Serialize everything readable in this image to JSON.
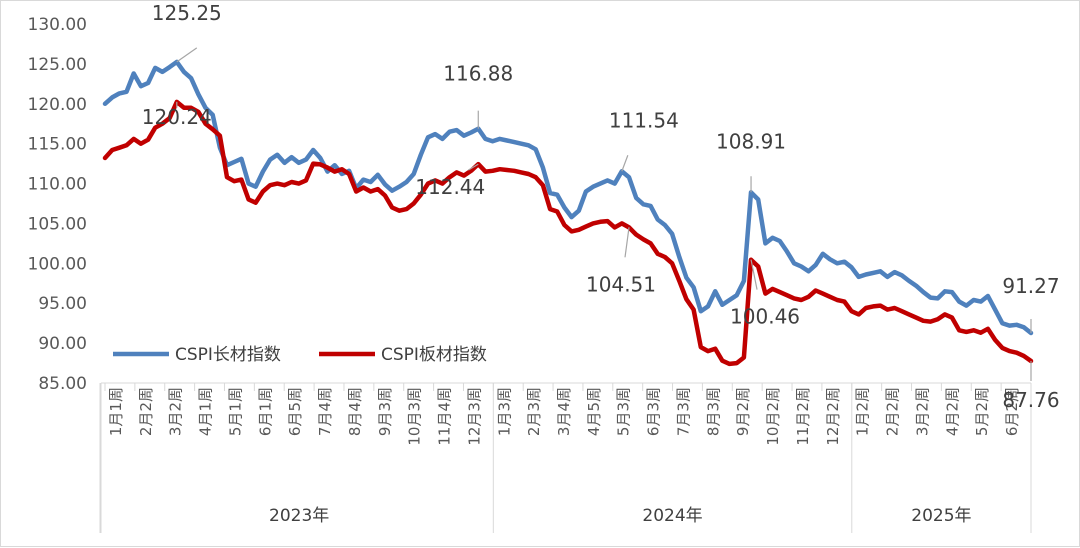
{
  "chart_data": {
    "type": "line",
    "title": "",
    "xlabel": "",
    "ylabel": "",
    "ylim": [
      85,
      130
    ],
    "yticks": [
      "85.00",
      "90.00",
      "95.00",
      "100.00",
      "105.00",
      "110.00",
      "115.00",
      "120.00",
      "125.00",
      "130.00"
    ],
    "grid": false,
    "legend_position": "bottom-left",
    "x_tick_labels": [
      "1月1周",
      "2月2周",
      "3月2周",
      "4月1周",
      "5月1周",
      "6月1周",
      "6月5周",
      "7月4周",
      "8月4周",
      "9月3周",
      "10月3周",
      "11月4周",
      "12月3周",
      "1月3周",
      "2月3周",
      "3月4周",
      "4月5周",
      "5月3周",
      "6月3周",
      "7月3周",
      "8月3周",
      "9月2周",
      "10月2周",
      "11月2周",
      "12月2周",
      "1月2周",
      "2月2周",
      "3月2周",
      "4月2周",
      "5月2周",
      "6月2周"
    ],
    "years": [
      "2023年",
      "2024年",
      "2025年"
    ],
    "series": [
      {
        "name": "CSPI长材指数",
        "color": "#4f81bd",
        "values": [
          120.0,
          120.8,
          121.3,
          121.5,
          123.8,
          122.2,
          122.6,
          124.5,
          124.0,
          124.6,
          125.25,
          124.0,
          123.2,
          121.2,
          119.5,
          118.6,
          114.5,
          112.3,
          112.7,
          113.1,
          110.0,
          109.6,
          111.5,
          113.0,
          113.6,
          112.6,
          113.3,
          112.6,
          113.0,
          114.2,
          113.2,
          111.5,
          112.3,
          111.2,
          111.6,
          109.4,
          110.5,
          110.2,
          111.1,
          109.9,
          109.1,
          109.6,
          110.2,
          111.2,
          113.6,
          115.8,
          116.2,
          115.6,
          116.5,
          116.7,
          116.0,
          116.4,
          116.88,
          115.6,
          115.3,
          115.6,
          115.4,
          115.2,
          115.0,
          114.8,
          114.3,
          112.0,
          108.8,
          108.6,
          107.0,
          105.8,
          106.6,
          109.0,
          109.6,
          110.0,
          110.4,
          110.0,
          111.54,
          110.8,
          108.2,
          107.4,
          107.2,
          105.5,
          104.8,
          103.7,
          100.8,
          98.2,
          97.0,
          94.0,
          94.6,
          96.5,
          94.8,
          95.4,
          96.0,
          97.8,
          108.91,
          108.0,
          102.5,
          103.2,
          102.8,
          101.5,
          100.0,
          99.6,
          99.0,
          99.8,
          101.2,
          100.5,
          100.0,
          100.2,
          99.5,
          98.3,
          98.6,
          98.8,
          99.0,
          98.3,
          98.9,
          98.5,
          97.8,
          97.2,
          96.4,
          95.7,
          95.6,
          96.5,
          96.4,
          95.2,
          94.7,
          95.4,
          95.2,
          95.9,
          94.2,
          92.5,
          92.2,
          92.3,
          92.0,
          91.27
        ]
      },
      {
        "name": "CSPI板材指数",
        "color": "#c00000",
        "values": [
          113.2,
          114.2,
          114.5,
          114.8,
          115.6,
          115.0,
          115.5,
          117.0,
          117.5,
          118.2,
          120.24,
          119.5,
          119.5,
          119.0,
          117.5,
          116.8,
          116.0,
          110.8,
          110.3,
          110.5,
          108.0,
          107.6,
          109.0,
          109.8,
          110.0,
          109.8,
          110.2,
          110.0,
          110.4,
          112.5,
          112.4,
          112.0,
          111.5,
          111.8,
          111.2,
          109.0,
          109.5,
          109.0,
          109.3,
          108.5,
          107.0,
          106.6,
          106.8,
          107.5,
          108.6,
          110.0,
          110.4,
          110.0,
          110.8,
          111.4,
          111.0,
          111.6,
          112.44,
          111.5,
          111.6,
          111.8,
          111.7,
          111.6,
          111.4,
          111.2,
          110.8,
          109.8,
          106.8,
          106.5,
          104.8,
          104.0,
          104.2,
          104.6,
          105.0,
          105.2,
          105.3,
          104.5,
          105.0,
          104.51,
          103.6,
          103.0,
          102.5,
          101.2,
          100.8,
          100.0,
          97.8,
          95.5,
          94.2,
          89.5,
          89.0,
          89.3,
          87.8,
          87.4,
          87.5,
          88.2,
          100.46,
          99.6,
          96.2,
          96.8,
          96.4,
          96.0,
          95.6,
          95.4,
          95.8,
          96.6,
          96.2,
          95.8,
          95.4,
          95.2,
          94.0,
          93.6,
          94.4,
          94.6,
          94.7,
          94.2,
          94.4,
          94.0,
          93.6,
          93.2,
          92.8,
          92.7,
          93.0,
          93.6,
          93.2,
          91.6,
          91.4,
          91.6,
          91.3,
          91.8,
          90.4,
          89.4,
          89.0,
          88.8,
          88.4,
          87.76
        ]
      }
    ],
    "annotations": [
      {
        "series": 0,
        "text": "125.25"
      },
      {
        "series": 1,
        "text": "120.24"
      },
      {
        "series": 0,
        "text": "116.88"
      },
      {
        "series": 1,
        "text": "112.44"
      },
      {
        "series": 0,
        "text": "111.54"
      },
      {
        "series": 1,
        "text": "104.51"
      },
      {
        "series": 0,
        "text": "108.91"
      },
      {
        "series": 1,
        "text": "100.46"
      },
      {
        "series": 0,
        "text": "91.27"
      },
      {
        "series": 1,
        "text": "87.76"
      }
    ]
  }
}
